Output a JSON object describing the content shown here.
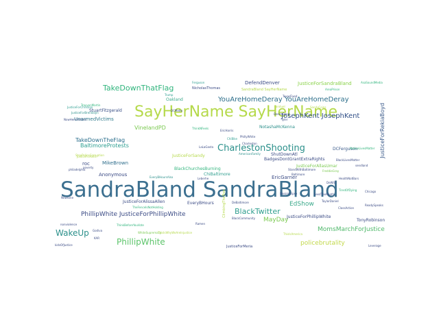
{
  "words": [
    {
      "text": "SandraBland SandraBland",
      "color": "#3b6f8f"
    },
    {
      "text": "SayHerName SayHerName",
      "color": "#b5d94a"
    },
    {
      "text": "CharlestonShooting",
      "color": "#2a8f8a"
    },
    {
      "text": "YouAreHomeDeray YouAreHomeDeray",
      "color": "#2c6e8a"
    },
    {
      "text": "TakeDownThatFlag",
      "color": "#2fb47c"
    },
    {
      "text": "JosephKent JosephKent",
      "color": "#2f4e86"
    },
    {
      "text": "PhillipWhite",
      "color": "#5cc46a"
    },
    {
      "text": "WakeUp",
      "color": "#2a8f8a"
    },
    {
      "text": "PhillipWhite JusticeForPhillipWhite",
      "color": "#3a4a84"
    },
    {
      "text": "BlackTwitter",
      "color": "#2f9e8e"
    },
    {
      "text": "policebrutality",
      "color": "#c2d84a"
    },
    {
      "text": "MomsMarchForJustice",
      "color": "#4fb86a"
    },
    {
      "text": "MayDay",
      "color": "#7ac94f"
    },
    {
      "text": "EdShow",
      "color": "#3aa88a"
    },
    {
      "text": "UnarmedVictims",
      "color": "#2f7a8c"
    },
    {
      "text": "TakeDownTheFlag",
      "color": "#2a6e8c"
    },
    {
      "text": "BaltimoreProtests",
      "color": "#2a9d8f"
    },
    {
      "text": "VinelandPD",
      "color": "#7ac94f"
    },
    {
      "text": "StuartFitzgerald",
      "color": "#3a4f86"
    },
    {
      "text": "Oakland",
      "color": "#3aa88a"
    },
    {
      "text": "DefendDenver",
      "color": "#3a4a84"
    },
    {
      "text": "JusticeForSandraBland",
      "color": "#8ad24a"
    },
    {
      "text": "JusticeForRekiaBoyd",
      "color": "#3a5a8a"
    },
    {
      "text": "EricGarner",
      "color": "#3a4a84"
    },
    {
      "text": "roc",
      "color": "#3a4a84"
    },
    {
      "text": "MikeBrown",
      "color": "#2f6e8c"
    },
    {
      "text": "Anonymous",
      "color": "#3a4a84"
    },
    {
      "text": "JusticeForSandy",
      "color": "#b5d94a"
    },
    {
      "text": "ChiBaltimore",
      "color": "#2f9e8e"
    },
    {
      "text": "BlackChurchesBurning",
      "color": "#2fb47c"
    },
    {
      "text": "JusticeForAlissaAllen",
      "color": "#3a4a84"
    },
    {
      "text": "EveryBHours",
      "color": "#3a4a84"
    },
    {
      "text": "DCFerguson",
      "color": "#3a5a8a"
    },
    {
      "text": "ShutDownAtl",
      "color": "#3a4a84"
    },
    {
      "text": "BadgesDontGrantExtraRights",
      "color": "#3a4a84"
    },
    {
      "text": "JusticeForPhillipWhite",
      "color": "#3a4a84"
    },
    {
      "text": "JusticeForMeria",
      "color": "#3a4a84"
    },
    {
      "text": "TonyRobinson",
      "color": "#3a4a84"
    },
    {
      "text": "NotashaMcKenna",
      "color": "#2a8f8a"
    },
    {
      "text": "JusticeForAllasUmar",
      "color": "#7ac94f"
    },
    {
      "text": "SandraBland SayHerName",
      "color": "#b5d94a"
    },
    {
      "text": "NicholasThomas",
      "color": "#3a4a84"
    },
    {
      "text": "Trump",
      "color": "#2a9d8f"
    },
    {
      "text": "Ferguson",
      "color": "#2a9d8f"
    },
    {
      "text": "AreaPrison",
      "color": "#2fb47c"
    },
    {
      "text": "JusticeForChristian",
      "color": "#2a9d8f"
    },
    {
      "text": "JusticeForBrendalyn",
      "color": "#2a8f8a"
    },
    {
      "text": "NowHereVictims",
      "color": "#3a4a84"
    },
    {
      "text": "WhiteSupremacy",
      "color": "#7ac94f"
    },
    {
      "text": "SandyCoins",
      "color": "#b5d94a"
    },
    {
      "text": "Fanduel",
      "color": "#b5d94a"
    },
    {
      "text": "Tyler",
      "color": "#3a4a84"
    },
    {
      "text": "FeedTheHeath",
      "color": "#3a4a84"
    },
    {
      "text": "Chicago",
      "color": "#3a4a84"
    },
    {
      "text": "ClassAction",
      "color": "#3a4a84"
    },
    {
      "text": "ReadySpeaks",
      "color": "#3a4a84"
    },
    {
      "text": "ThinkNFeels",
      "color": "#2fb47c"
    },
    {
      "text": "StopPoliceCorruption",
      "color": "#b5d94a"
    },
    {
      "text": "FreddieGray",
      "color": "#7ac94f"
    },
    {
      "text": "EricHarris",
      "color": "#3a4a84"
    },
    {
      "text": "PhillyWhite",
      "color": "#3a4a84"
    },
    {
      "text": "NativeLivesMatter",
      "color": "#2fb47c"
    },
    {
      "text": "Baltimore",
      "color": "#3a4a84"
    },
    {
      "text": "ThisIsWhyWeAreInjustice",
      "color": "#b5d94a"
    },
    {
      "text": "Charleston",
      "color": "#3a4a84"
    },
    {
      "text": "AmericanFamily",
      "color": "#2a8f8a"
    },
    {
      "text": "LaLaGasta",
      "color": "#3a4a84"
    },
    {
      "text": "DCMetro",
      "color": "#3a4a84"
    },
    {
      "text": "JusticeForKeith",
      "color": "#b5d94a"
    },
    {
      "text": "TrayvonMartin",
      "color": "#2fb47c"
    },
    {
      "text": "EveryBHoursAlso",
      "color": "#2a8f8a"
    },
    {
      "text": "Leberhe",
      "color": "#3a4a84"
    },
    {
      "text": "ChiBike",
      "color": "#2a9d8f"
    },
    {
      "text": "DenimBond",
      "color": "#3a4a84"
    },
    {
      "text": "ClimbingTheTree",
      "color": "#b5d94a"
    },
    {
      "text": "ThisIsAmerica",
      "color": "#b5d94a"
    },
    {
      "text": "BlackLivesMatter",
      "color": "#3a4a84"
    },
    {
      "text": "StandWithBaltimore",
      "color": "#3a4a84"
    },
    {
      "text": "DeBaltimore",
      "color": "#3a4a84"
    },
    {
      "text": "TexasFixed",
      "color": "#3a4a84"
    },
    {
      "text": "TiredOfDying",
      "color": "#2fb47c"
    },
    {
      "text": "nonviolence",
      "color": "#3a4a84"
    },
    {
      "text": "philadelphia",
      "color": "#3a4a84"
    },
    {
      "text": "kidsOfJustice",
      "color": "#3a4a84"
    },
    {
      "text": "Newsline",
      "color": "#3a4a84"
    },
    {
      "text": "poverty",
      "color": "#3a4a84"
    },
    {
      "text": "Godiva",
      "color": "#3a4a84"
    },
    {
      "text": "KAR",
      "color": "#3a4a84"
    },
    {
      "text": "ThinkBeforeYouVote",
      "color": "#2fb47c"
    },
    {
      "text": "Ramen",
      "color": "#3a4a84"
    },
    {
      "text": "DenimClipse",
      "color": "#3a4a84"
    },
    {
      "text": "TheFenceIsNotHolding",
      "color": "#2fb47c"
    },
    {
      "text": "BlackCommunity",
      "color": "#3a4a84"
    },
    {
      "text": "sendland",
      "color": "#3a4a84"
    },
    {
      "text": "HealthNotBars",
      "color": "#3a4a84"
    },
    {
      "text": "TaylorDaniel",
      "color": "#3a4a84"
    },
    {
      "text": "AsaSoundMedia",
      "color": "#2fb47c"
    },
    {
      "text": "DeWitt",
      "color": "#3a4a84"
    },
    {
      "text": "Leverage",
      "color": "#3a4a84"
    }
  ]
}
